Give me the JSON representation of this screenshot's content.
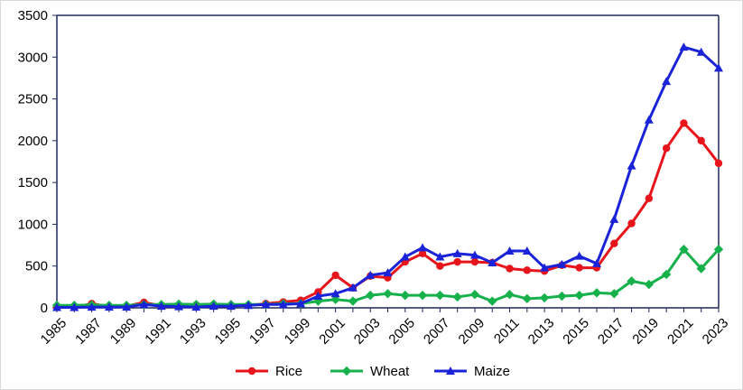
{
  "chart_data": {
    "type": "line",
    "title": "",
    "xlabel": "",
    "ylabel": "",
    "x": [
      1985,
      1986,
      1987,
      1988,
      1989,
      1990,
      1991,
      1992,
      1993,
      1994,
      1995,
      1996,
      1997,
      1998,
      1999,
      2000,
      2001,
      2002,
      2003,
      2004,
      2005,
      2006,
      2007,
      2008,
      2009,
      2010,
      2011,
      2012,
      2013,
      2014,
      2015,
      2016,
      2017,
      2018,
      2019,
      2020,
      2021,
      2022,
      2023
    ],
    "x_tick_labels": [
      "1985",
      "1987",
      "1989",
      "1991",
      "1993",
      "1995",
      "1997",
      "1999",
      "2001",
      "2003",
      "2005",
      "2007",
      "2009",
      "2011",
      "2013",
      "2015",
      "2017",
      "2019",
      "2021",
      "2023"
    ],
    "ylim": [
      0,
      3500
    ],
    "y_ticks": [
      0,
      500,
      1000,
      1500,
      2000,
      2500,
      3000,
      3500
    ],
    "y_tick_labels": [
      "0",
      "500",
      "1000",
      "1500",
      "2000",
      "2500",
      "3000",
      "3500"
    ],
    "grid": false,
    "legend_position": "bottom",
    "series": [
      {
        "name": "Rice",
        "color": "#e8141b",
        "marker": "circle",
        "values": [
          10,
          5,
          50,
          15,
          20,
          65,
          25,
          25,
          35,
          40,
          30,
          30,
          50,
          70,
          90,
          190,
          390,
          240,
          380,
          360,
          550,
          650,
          500,
          550,
          550,
          540,
          470,
          450,
          440,
          510,
          480,
          480,
          770,
          1010,
          1310,
          1910,
          2210,
          2000,
          1730
        ]
      },
      {
        "name": "Wheat",
        "color": "#16b14b",
        "marker": "diamond",
        "values": [
          30,
          30,
          35,
          30,
          30,
          40,
          40,
          45,
          40,
          45,
          40,
          40,
          40,
          50,
          50,
          80,
          100,
          80,
          150,
          170,
          150,
          150,
          150,
          130,
          160,
          80,
          160,
          110,
          120,
          140,
          150,
          180,
          170,
          320,
          280,
          400,
          700,
          470,
          700
        ]
      },
      {
        "name": "Maize",
        "color": "#1a23d8",
        "marker": "triangle",
        "values": [
          5,
          5,
          10,
          10,
          10,
          40,
          20,
          15,
          10,
          20,
          20,
          30,
          40,
          40,
          50,
          140,
          170,
          240,
          390,
          420,
          610,
          720,
          610,
          650,
          630,
          540,
          680,
          680,
          480,
          520,
          620,
          530,
          1060,
          1700,
          2250,
          2710,
          3120,
          3060,
          2870
        ]
      }
    ]
  }
}
